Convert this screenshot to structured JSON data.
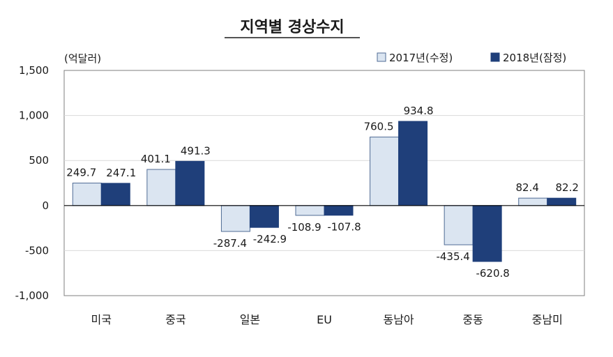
{
  "chart_data": {
    "type": "bar",
    "title": "지역별 경상수지",
    "unit_label": "(억달러)",
    "categories": [
      "미국",
      "중국",
      "일본",
      "EU",
      "동남아",
      "중동",
      "중남미"
    ],
    "series": [
      {
        "name": "2017년(수정)",
        "color": "#dbe5f1",
        "values": [
          249.7,
          401.1,
          -287.4,
          -108.9,
          760.5,
          -435.4,
          82.4
        ],
        "labels": [
          "249.7",
          "401.1",
          "-287.4",
          "-108.9",
          "760.5",
          "-435.4",
          "82.4"
        ]
      },
      {
        "name": "2018년(잠정)",
        "color": "#1f3f7a",
        "values": [
          247.1,
          491.3,
          -242.9,
          -107.8,
          934.8,
          -620.8,
          82.2
        ],
        "labels": [
          "247.1",
          "491.3",
          "-242.9",
          "-107.8",
          "934.8",
          "-620.8",
          "82.2"
        ]
      }
    ],
    "ylim": [
      -1000,
      1500
    ],
    "yticks": [
      1500,
      1000,
      500,
      0,
      -500,
      -1000
    ],
    "ytick_labels": [
      "1,500",
      "1,000",
      "500",
      "0",
      "-500",
      "-1,000"
    ],
    "grid": true,
    "legend_position": "top-right",
    "xlabel": "",
    "ylabel": ""
  }
}
